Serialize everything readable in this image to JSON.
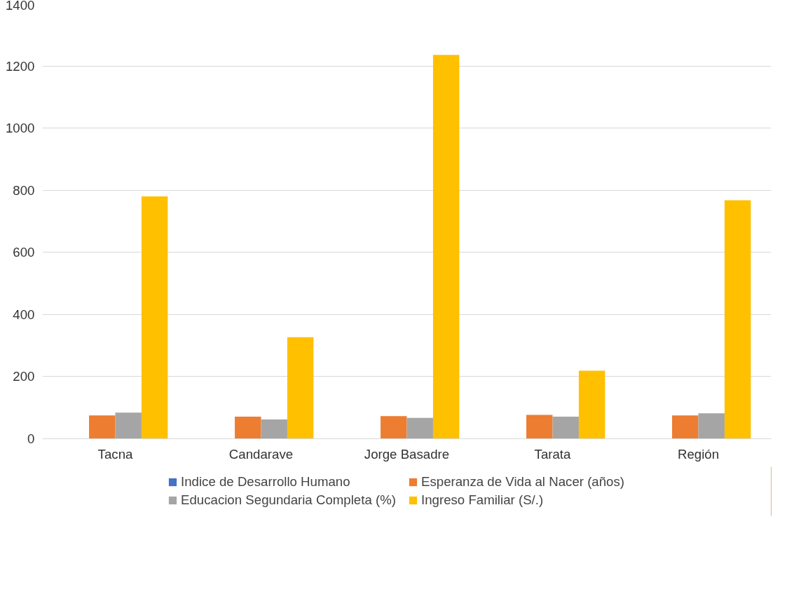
{
  "chart_data": {
    "type": "bar",
    "categories": [
      "Tacna",
      "Candarave",
      "Jorge Basadre",
      "Tarata",
      "Región"
    ],
    "series": [
      {
        "name": "Indice de Desarrollo Humano",
        "color": "#4472c4",
        "values": [
          null,
          null,
          null,
          null,
          null
        ]
      },
      {
        "name": "Esperanza de Vida al Nacer (años)",
        "color": "#ed7d31",
        "values": [
          75,
          71,
          73,
          77,
          75
        ]
      },
      {
        "name": "Educacion Segundaria Completa (%)",
        "color": "#a5a5a5",
        "values": [
          84,
          62,
          67,
          71,
          82
        ]
      },
      {
        "name": "Ingreso Familiar (S/.)",
        "color": "#ffc000",
        "values": [
          780,
          327,
          1236,
          219,
          768
        ]
      }
    ],
    "ylim": [
      0,
      1400
    ],
    "yticks": [
      0,
      200,
      400,
      600,
      800,
      1000,
      1200,
      1400
    ],
    "grid": "y",
    "legend": "bottom"
  }
}
